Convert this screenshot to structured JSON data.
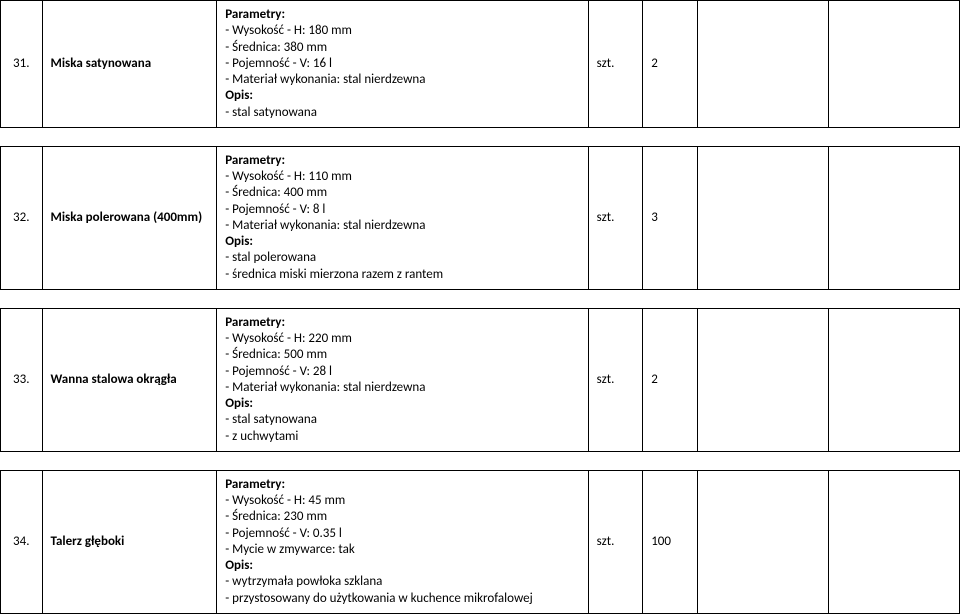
{
  "rows": [
    {
      "num": "31.",
      "name": "Miska satynowana",
      "param_label": "Parametry:",
      "params": [
        "- Wysokość - H: 180 mm",
        "- Średnica: 380 mm",
        "- Pojemność - V: 16 l",
        "- Materiał wykonania: stal nierdzewna"
      ],
      "opis_label": "Opis:",
      "opis": [
        "- stal satynowana"
      ],
      "unit": "szt.",
      "qty": "2"
    },
    {
      "num": "32.",
      "name": "Miska polerowana (400mm)",
      "param_label": "Parametry:",
      "params": [
        "- Wysokość - H: 110 mm",
        "- Średnica: 400 mm",
        "- Pojemność - V: 8 l",
        "- Materiał wykonania: stal nierdzewna"
      ],
      "opis_label": "Opis:",
      "opis": [
        "- stal polerowana",
        "- średnica miski mierzona razem z rantem"
      ],
      "unit": "szt.",
      "qty": "3"
    },
    {
      "num": "33.",
      "name": "Wanna stalowa okrągła",
      "param_label": "Parametry:",
      "params": [
        "- Wysokość - H: 220 mm",
        "- Średnica: 500 mm",
        "- Pojemność - V: 28 l",
        "- Materiał wykonania: stal nierdzewna"
      ],
      "opis_label": "Opis:",
      "opis": [
        "- stal satynowana",
        "- z uchwytami"
      ],
      "unit": "szt.",
      "qty": "2"
    },
    {
      "num": "34.",
      "name": "Talerz głęboki",
      "param_label": "Parametry:",
      "params": [
        "- Wysokość - H: 45 mm",
        "- Średnica: 230 mm",
        "- Pojemność - V: 0.35 l",
        "- Mycie w zmywarce: tak"
      ],
      "opis_label": "Opis:",
      "opis": [
        "- wytrzymała powłoka szklana",
        "- przystosowany do użytkowania w kuchence mikrofalowej"
      ],
      "unit": "szt.",
      "qty": "100"
    }
  ]
}
